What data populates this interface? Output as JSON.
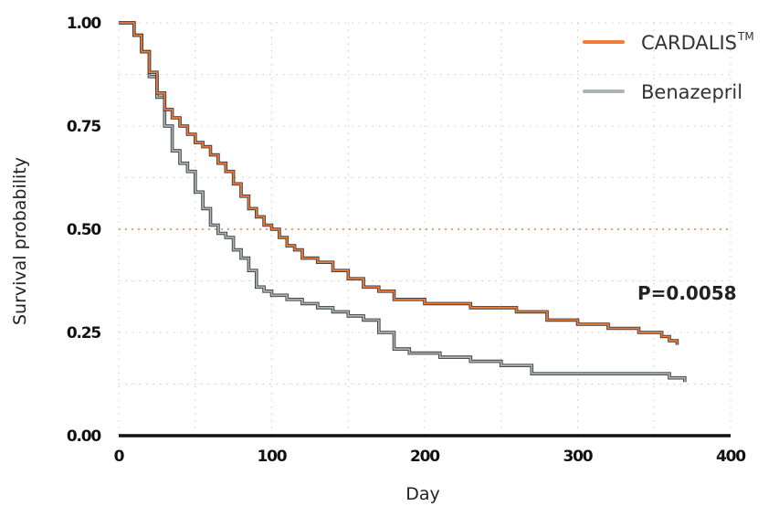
{
  "chart_data": {
    "type": "line",
    "xlabel": "Day",
    "ylabel": "Survival probability",
    "xlim": [
      0,
      400
    ],
    "ylim": [
      0,
      1
    ],
    "xticks": [
      0,
      100,
      200,
      300,
      400
    ],
    "xtick_labels": [
      "0",
      "100",
      "200",
      "300",
      "400"
    ],
    "yticks": [
      0,
      0.25,
      0.5,
      0.75,
      1
    ],
    "ytick_labels": [
      "0.00",
      "0.25",
      "0.50",
      "0.75",
      "1.00"
    ],
    "grid": true,
    "reference_line": {
      "y": 0.5,
      "color": "#f07c3a"
    },
    "legend": {
      "position": "top-right"
    },
    "annotation": "P=0.0058",
    "series": [
      {
        "name": "CARDALIS",
        "name_superscript": "TM",
        "color": "#f07c3a",
        "x": [
          0,
          7,
          10,
          15,
          20,
          25,
          30,
          35,
          40,
          45,
          50,
          55,
          60,
          65,
          70,
          75,
          80,
          85,
          90,
          95,
          100,
          105,
          110,
          115,
          120,
          130,
          140,
          150,
          160,
          170,
          180,
          190,
          200,
          210,
          220,
          230,
          240,
          250,
          260,
          270,
          280,
          290,
          300,
          310,
          320,
          330,
          340,
          350,
          355,
          360,
          365
        ],
        "y": [
          1.0,
          1.0,
          0.97,
          0.93,
          0.88,
          0.83,
          0.79,
          0.77,
          0.75,
          0.73,
          0.71,
          0.7,
          0.68,
          0.66,
          0.64,
          0.61,
          0.58,
          0.55,
          0.53,
          0.51,
          0.5,
          0.48,
          0.46,
          0.45,
          0.43,
          0.42,
          0.4,
          0.38,
          0.36,
          0.35,
          0.33,
          0.33,
          0.32,
          0.32,
          0.32,
          0.31,
          0.31,
          0.31,
          0.3,
          0.3,
          0.28,
          0.28,
          0.27,
          0.27,
          0.26,
          0.26,
          0.25,
          0.25,
          0.24,
          0.23,
          0.22
        ]
      },
      {
        "name": "Benazepril",
        "color": "#aab3b5",
        "x": [
          0,
          7,
          10,
          15,
          20,
          25,
          30,
          35,
          40,
          45,
          50,
          55,
          60,
          65,
          70,
          75,
          80,
          85,
          90,
          95,
          100,
          110,
          120,
          130,
          140,
          150,
          160,
          170,
          180,
          190,
          200,
          210,
          220,
          230,
          240,
          250,
          260,
          270,
          280,
          290,
          300,
          310,
          320,
          330,
          340,
          350,
          360,
          370
        ],
        "y": [
          1.0,
          1.0,
          0.97,
          0.93,
          0.87,
          0.82,
          0.75,
          0.69,
          0.66,
          0.64,
          0.59,
          0.55,
          0.51,
          0.49,
          0.48,
          0.45,
          0.43,
          0.4,
          0.36,
          0.35,
          0.34,
          0.33,
          0.32,
          0.31,
          0.3,
          0.29,
          0.28,
          0.25,
          0.21,
          0.2,
          0.2,
          0.19,
          0.19,
          0.18,
          0.18,
          0.17,
          0.17,
          0.15,
          0.15,
          0.15,
          0.15,
          0.15,
          0.15,
          0.15,
          0.15,
          0.15,
          0.14,
          0.13
        ]
      }
    ]
  }
}
